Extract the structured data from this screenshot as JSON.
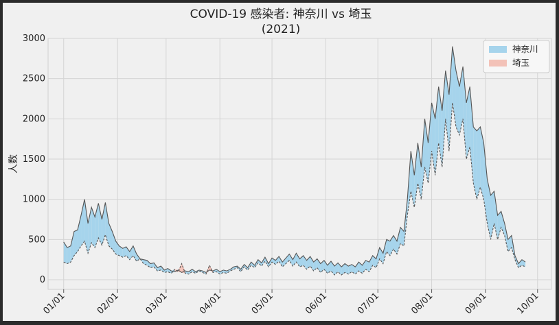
{
  "chart_data": {
    "type": "area",
    "title": "COVID-19 感染者: 神奈川 vs 埼玉",
    "subtitle": "(2021)",
    "xlabel": "",
    "ylabel": "人数",
    "ylim": [
      0,
      3000
    ],
    "yticks": [
      "0",
      "500",
      "1000",
      "1500",
      "2000",
      "2500",
      "3000"
    ],
    "xticks": [
      "01/01",
      "02/01",
      "03/01",
      "04/01",
      "05/01",
      "06/01",
      "07/01",
      "08/01",
      "09/01",
      "10/01"
    ],
    "grid": true,
    "legend_position": "top-right",
    "x_range_days": [
      1,
      267
    ],
    "series": [
      {
        "name": "神奈川",
        "color": "#a6d4ec",
        "line": "solid",
        "points": [
          [
            1,
            470
          ],
          [
            3,
            400
          ],
          [
            5,
            420
          ],
          [
            7,
            600
          ],
          [
            9,
            620
          ],
          [
            11,
            800
          ],
          [
            13,
            1000
          ],
          [
            15,
            700
          ],
          [
            17,
            900
          ],
          [
            19,
            780
          ],
          [
            21,
            950
          ],
          [
            23,
            750
          ],
          [
            25,
            960
          ],
          [
            27,
            700
          ],
          [
            29,
            600
          ],
          [
            31,
            480
          ],
          [
            33,
            420
          ],
          [
            35,
            390
          ],
          [
            37,
            410
          ],
          [
            39,
            350
          ],
          [
            41,
            420
          ],
          [
            43,
            320
          ],
          [
            45,
            260
          ],
          [
            47,
            250
          ],
          [
            49,
            240
          ],
          [
            51,
            200
          ],
          [
            53,
            210
          ],
          [
            55,
            150
          ],
          [
            57,
            170
          ],
          [
            59,
            120
          ],
          [
            61,
            140
          ],
          [
            63,
            110
          ],
          [
            65,
            100
          ],
          [
            67,
            120
          ],
          [
            69,
            90
          ],
          [
            71,
            110
          ],
          [
            73,
            100
          ],
          [
            75,
            130
          ],
          [
            77,
            100
          ],
          [
            79,
            120
          ],
          [
            81,
            110
          ],
          [
            83,
            90
          ],
          [
            85,
            120
          ],
          [
            87,
            110
          ],
          [
            89,
            130
          ],
          [
            91,
            100
          ],
          [
            93,
            120
          ],
          [
            95,
            110
          ],
          [
            97,
            130
          ],
          [
            99,
            160
          ],
          [
            101,
            170
          ],
          [
            103,
            130
          ],
          [
            105,
            190
          ],
          [
            107,
            150
          ],
          [
            109,
            220
          ],
          [
            111,
            180
          ],
          [
            113,
            250
          ],
          [
            115,
            210
          ],
          [
            117,
            280
          ],
          [
            119,
            200
          ],
          [
            121,
            270
          ],
          [
            123,
            240
          ],
          [
            125,
            290
          ],
          [
            127,
            220
          ],
          [
            129,
            270
          ],
          [
            131,
            320
          ],
          [
            133,
            250
          ],
          [
            135,
            330
          ],
          [
            137,
            260
          ],
          [
            139,
            300
          ],
          [
            141,
            240
          ],
          [
            143,
            290
          ],
          [
            145,
            220
          ],
          [
            147,
            260
          ],
          [
            149,
            200
          ],
          [
            151,
            240
          ],
          [
            153,
            180
          ],
          [
            155,
            230
          ],
          [
            157,
            170
          ],
          [
            159,
            210
          ],
          [
            161,
            160
          ],
          [
            163,
            200
          ],
          [
            165,
            170
          ],
          [
            167,
            190
          ],
          [
            169,
            160
          ],
          [
            171,
            220
          ],
          [
            173,
            180
          ],
          [
            175,
            240
          ],
          [
            177,
            220
          ],
          [
            179,
            300
          ],
          [
            181,
            260
          ],
          [
            183,
            400
          ],
          [
            185,
            330
          ],
          [
            187,
            500
          ],
          [
            189,
            480
          ],
          [
            191,
            550
          ],
          [
            193,
            480
          ],
          [
            195,
            650
          ],
          [
            197,
            600
          ],
          [
            199,
            1000
          ],
          [
            201,
            1600
          ],
          [
            203,
            1300
          ],
          [
            205,
            1700
          ],
          [
            207,
            1400
          ],
          [
            209,
            2000
          ],
          [
            211,
            1700
          ],
          [
            213,
            2200
          ],
          [
            215,
            2000
          ],
          [
            217,
            2400
          ],
          [
            219,
            2100
          ],
          [
            221,
            2600
          ],
          [
            223,
            2300
          ],
          [
            225,
            2900
          ],
          [
            227,
            2600
          ],
          [
            229,
            2400
          ],
          [
            231,
            2650
          ],
          [
            233,
            2200
          ],
          [
            235,
            2400
          ],
          [
            237,
            1900
          ],
          [
            239,
            1850
          ],
          [
            241,
            1900
          ],
          [
            243,
            1700
          ],
          [
            245,
            1250
          ],
          [
            247,
            1050
          ],
          [
            249,
            1100
          ],
          [
            251,
            800
          ],
          [
            253,
            850
          ],
          [
            255,
            700
          ],
          [
            257,
            500
          ],
          [
            259,
            550
          ],
          [
            261,
            300
          ],
          [
            263,
            200
          ],
          [
            265,
            250
          ],
          [
            267,
            220
          ]
        ]
      },
      {
        "name": "埼玉",
        "color": "#f3c2b8",
        "line": "dashed",
        "points": [
          [
            1,
            220
          ],
          [
            3,
            200
          ],
          [
            5,
            220
          ],
          [
            7,
            300
          ],
          [
            9,
            350
          ],
          [
            11,
            420
          ],
          [
            13,
            480
          ],
          [
            15,
            330
          ],
          [
            17,
            460
          ],
          [
            19,
            400
          ],
          [
            21,
            520
          ],
          [
            23,
            430
          ],
          [
            25,
            560
          ],
          [
            27,
            420
          ],
          [
            29,
            380
          ],
          [
            31,
            320
          ],
          [
            33,
            300
          ],
          [
            35,
            280
          ],
          [
            37,
            300
          ],
          [
            39,
            250
          ],
          [
            41,
            300
          ],
          [
            43,
            230
          ],
          [
            45,
            260
          ],
          [
            47,
            200
          ],
          [
            49,
            180
          ],
          [
            51,
            150
          ],
          [
            53,
            160
          ],
          [
            55,
            110
          ],
          [
            57,
            120
          ],
          [
            59,
            90
          ],
          [
            61,
            100
          ],
          [
            63,
            80
          ],
          [
            65,
            130
          ],
          [
            67,
            100
          ],
          [
            69,
            200
          ],
          [
            71,
            80
          ],
          [
            73,
            70
          ],
          [
            75,
            100
          ],
          [
            77,
            80
          ],
          [
            79,
            110
          ],
          [
            81,
            90
          ],
          [
            83,
            70
          ],
          [
            85,
            180
          ],
          [
            87,
            90
          ],
          [
            89,
            100
          ],
          [
            91,
            70
          ],
          [
            93,
            90
          ],
          [
            95,
            80
          ],
          [
            97,
            110
          ],
          [
            99,
            130
          ],
          [
            101,
            150
          ],
          [
            103,
            100
          ],
          [
            105,
            160
          ],
          [
            107,
            120
          ],
          [
            109,
            180
          ],
          [
            111,
            150
          ],
          [
            113,
            210
          ],
          [
            115,
            170
          ],
          [
            117,
            230
          ],
          [
            119,
            160
          ],
          [
            121,
            220
          ],
          [
            123,
            190
          ],
          [
            125,
            230
          ],
          [
            127,
            160
          ],
          [
            129,
            200
          ],
          [
            131,
            240
          ],
          [
            133,
            170
          ],
          [
            135,
            220
          ],
          [
            137,
            160
          ],
          [
            139,
            180
          ],
          [
            141,
            130
          ],
          [
            143,
            170
          ],
          [
            145,
            110
          ],
          [
            147,
            150
          ],
          [
            149,
            90
          ],
          [
            151,
            130
          ],
          [
            153,
            80
          ],
          [
            155,
            110
          ],
          [
            157,
            60
          ],
          [
            159,
            100
          ],
          [
            161,
            60
          ],
          [
            163,
            90
          ],
          [
            165,
            70
          ],
          [
            167,
            100
          ],
          [
            169,
            70
          ],
          [
            171,
            110
          ],
          [
            173,
            80
          ],
          [
            175,
            130
          ],
          [
            177,
            100
          ],
          [
            179,
            180
          ],
          [
            181,
            150
          ],
          [
            183,
            260
          ],
          [
            185,
            200
          ],
          [
            187,
            350
          ],
          [
            189,
            300
          ],
          [
            191,
            380
          ],
          [
            193,
            320
          ],
          [
            195,
            450
          ],
          [
            197,
            420
          ],
          [
            199,
            800
          ],
          [
            201,
            1100
          ],
          [
            203,
            900
          ],
          [
            205,
            1200
          ],
          [
            207,
            1000
          ],
          [
            209,
            1400
          ],
          [
            211,
            1200
          ],
          [
            213,
            1600
          ],
          [
            215,
            1300
          ],
          [
            217,
            1700
          ],
          [
            219,
            1400
          ],
          [
            221,
            2000
          ],
          [
            223,
            1600
          ],
          [
            225,
            2200
          ],
          [
            227,
            1900
          ],
          [
            229,
            1800
          ],
          [
            231,
            2000
          ],
          [
            233,
            1500
          ],
          [
            235,
            1650
          ],
          [
            237,
            1200
          ],
          [
            239,
            1000
          ],
          [
            241,
            1150
          ],
          [
            243,
            1000
          ],
          [
            245,
            700
          ],
          [
            247,
            500
          ],
          [
            249,
            700
          ],
          [
            251,
            500
          ],
          [
            253,
            650
          ],
          [
            255,
            550
          ],
          [
            257,
            350
          ],
          [
            259,
            400
          ],
          [
            261,
            250
          ],
          [
            263,
            150
          ],
          [
            265,
            180
          ],
          [
            267,
            160
          ]
        ]
      }
    ]
  }
}
